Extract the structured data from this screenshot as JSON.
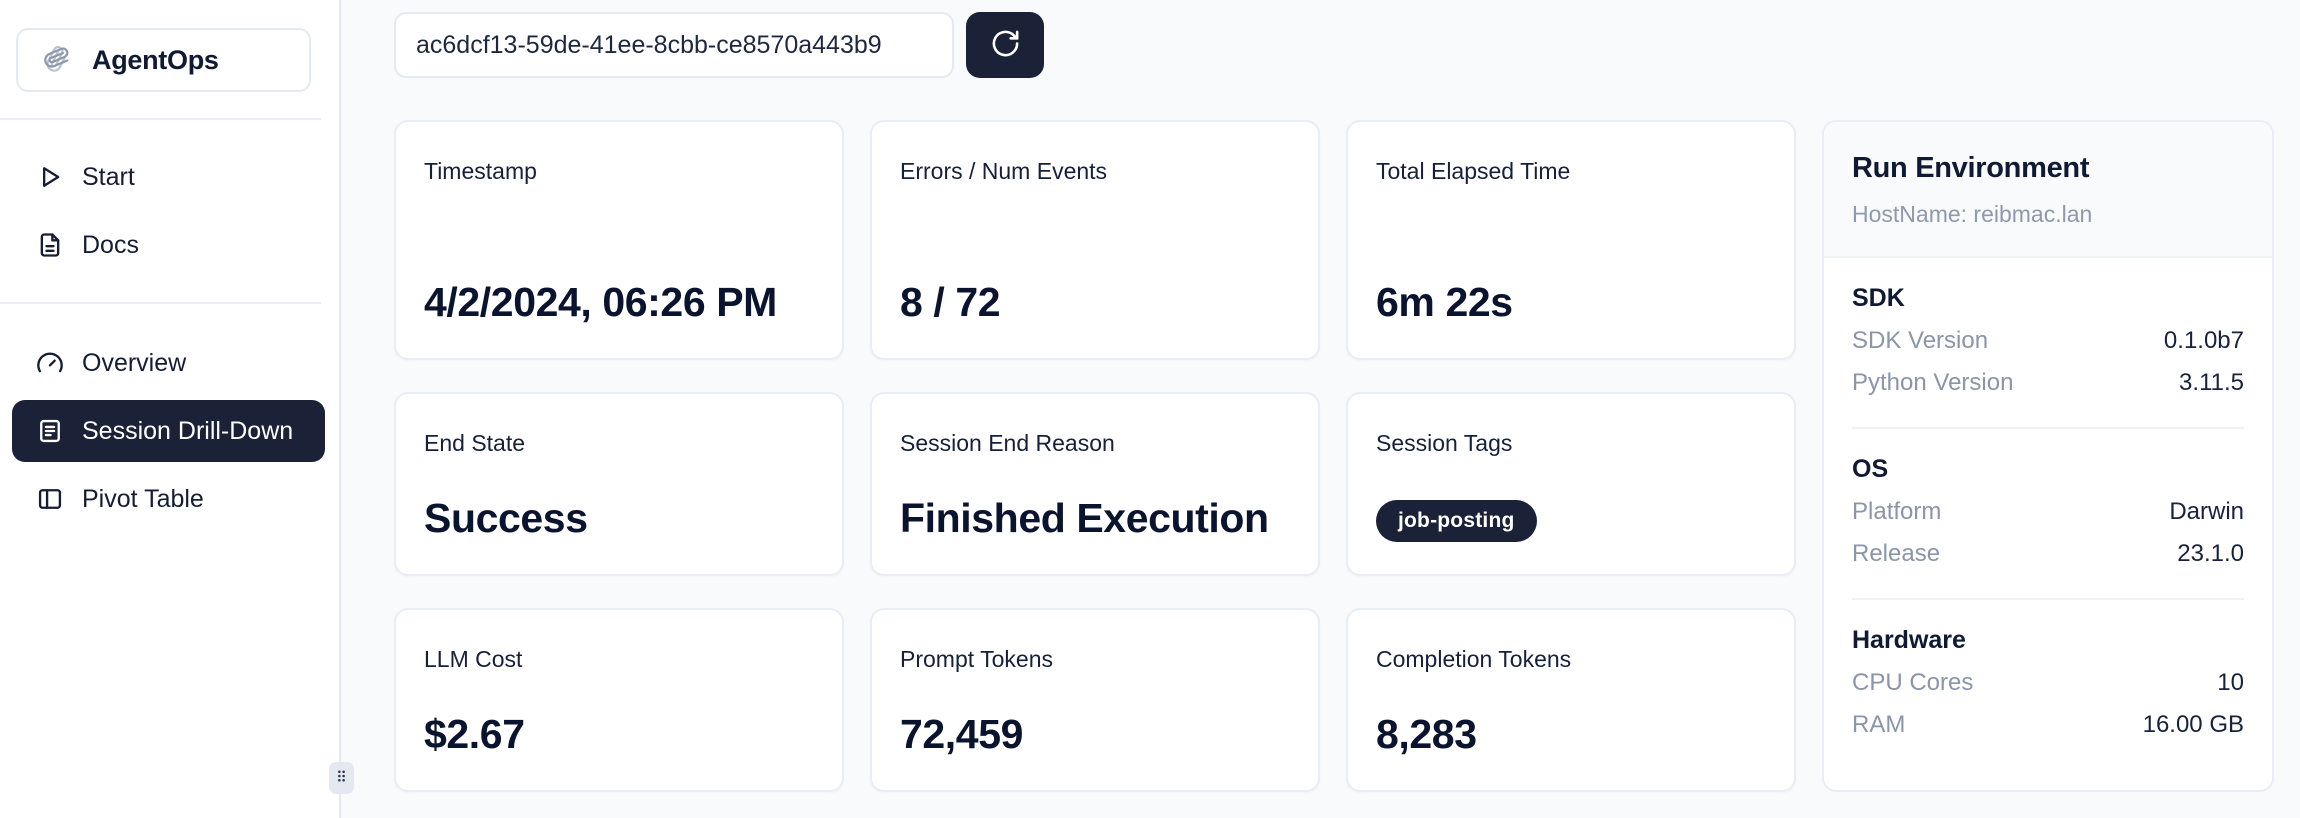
{
  "sidebar": {
    "logo": {
      "label": "AgentOps",
      "icon": "agentops-paperclip-logo"
    },
    "nav_top": [
      {
        "label": "Start",
        "icon": "play-icon",
        "active": false
      },
      {
        "label": "Docs",
        "icon": "document-icon",
        "active": false
      }
    ],
    "nav_main": [
      {
        "label": "Overview",
        "icon": "gauge-icon",
        "active": false
      },
      {
        "label": "Session Drill-Down",
        "icon": "file-lines-icon",
        "active": true
      },
      {
        "label": "Pivot Table",
        "icon": "panel-left-icon",
        "active": false
      }
    ]
  },
  "topbar": {
    "session_id_value": "ac6dcf13-59de-41ee-8cbb-ce8570a443b9",
    "refresh_icon": "refresh-icon"
  },
  "cards": [
    {
      "label": "Timestamp",
      "value": "4/2/2024, 06:26 PM"
    },
    {
      "label": "Errors / Num Events",
      "value": "8 / 72"
    },
    {
      "label": "Total Elapsed Time",
      "value": "6m 22s"
    },
    {
      "label": "End State",
      "value": "Success"
    },
    {
      "label": "Session End Reason",
      "value": "Finished Execution"
    },
    {
      "label": "Session Tags",
      "tags": [
        "job-posting"
      ]
    },
    {
      "label": "LLM Cost",
      "value": "$2.67"
    },
    {
      "label": "Prompt Tokens",
      "value": "72,459"
    },
    {
      "label": "Completion Tokens",
      "value": "8,283"
    }
  ],
  "run_environment": {
    "title": "Run Environment",
    "hostname": "HostName: reibmac.lan",
    "sections": [
      {
        "heading": "SDK",
        "rows": [
          {
            "label": "SDK Version",
            "value": "0.1.0b7"
          },
          {
            "label": "Python Version",
            "value": "3.11.5"
          }
        ]
      },
      {
        "heading": "OS",
        "rows": [
          {
            "label": "Platform",
            "value": "Darwin"
          },
          {
            "label": "Release",
            "value": "23.1.0"
          }
        ]
      },
      {
        "heading": "Hardware",
        "rows": [
          {
            "label": "CPU Cores",
            "value": "10"
          },
          {
            "label": "RAM",
            "value": "16.00 GB"
          }
        ]
      }
    ]
  },
  "colors": {
    "accent_dark": "#1b2137",
    "page_bg": "#f8fafc",
    "card_border": "#e9edf4",
    "text_dark": "#0b142e",
    "label_gray": "#8a95a9"
  }
}
